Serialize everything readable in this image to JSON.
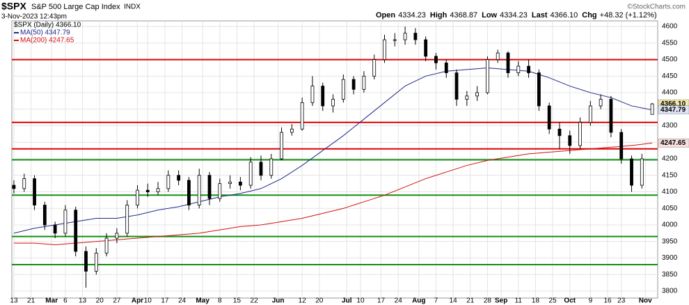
{
  "chart_data": {
    "type": "candlestick",
    "title": "$SPX",
    "subtitle": "S&P 500 Large Cap Index",
    "exchange": "INDX",
    "date": "3-Nov-2023 12:43pm",
    "quote": [
      {
        "label": "Open",
        "value": "4334.23"
      },
      {
        "label": "High",
        "value": "4368.87"
      },
      {
        "label": "Low",
        "value": "4334.23"
      },
      {
        "label": "Last",
        "value": "4366.10"
      },
      {
        "label": "Chg",
        "value": "+48.32 (+1.12%)"
      }
    ],
    "copyright": "©StockCharts.com",
    "price_name": "$SPX (Daily) 4366.10",
    "up_color": "#ffffff",
    "down_color": "#000000",
    "x": [
      0,
      3,
      6,
      9,
      12,
      15,
      18,
      21,
      24,
      27,
      30,
      33,
      36,
      39,
      42,
      45,
      48,
      51,
      54,
      57,
      60,
      63,
      66,
      69,
      72,
      75,
      78,
      81,
      84,
      87,
      90,
      93,
      96,
      99,
      102,
      105,
      108,
      111,
      114,
      117,
      120,
      123,
      126,
      129,
      132,
      135,
      138,
      141,
      144,
      147,
      150,
      153,
      156,
      159,
      162,
      165,
      168,
      171,
      174,
      177,
      180,
      183,
      186
    ],
    "open": [
      4120,
      4110,
      4140,
      4060,
      4000,
      3975,
      4045,
      3920,
      3860,
      3915,
      3960,
      3975,
      4060,
      4105,
      4100,
      4110,
      4150,
      4135,
      4060,
      4150,
      4080,
      4125,
      4130,
      4120,
      4190,
      4150,
      4200,
      4280,
      4290,
      4370,
      4420,
      4360,
      4380,
      4440,
      4410,
      4450,
      4500,
      4560,
      4560,
      4580,
      4560,
      4510,
      4490,
      4460,
      4380,
      4390,
      4400,
      4500,
      4520,
      4460,
      4480,
      4460,
      4360,
      4290,
      4270,
      4240,
      4310,
      4360,
      4380,
      4280,
      4200,
      4120,
      4334.23
    ],
    "high": [
      4135,
      4155,
      4150,
      4070,
      4010,
      4060,
      4055,
      3935,
      3930,
      3975,
      3990,
      4075,
      4120,
      4125,
      4130,
      4165,
      4165,
      4145,
      4170,
      4160,
      4140,
      4150,
      4145,
      4205,
      4210,
      4215,
      4295,
      4305,
      4385,
      4450,
      4430,
      4395,
      4455,
      4450,
      4465,
      4515,
      4575,
      4580,
      4600,
      4595,
      4570,
      4520,
      4500,
      4470,
      4405,
      4420,
      4510,
      4530,
      4525,
      4495,
      4500,
      4470,
      4370,
      4310,
      4285,
      4325,
      4375,
      4395,
      4390,
      4290,
      4210,
      4215,
      4368.87
    ],
    "low": [
      4095,
      4100,
      4045,
      3985,
      3960,
      3965,
      3905,
      3810,
      3850,
      3905,
      3945,
      3965,
      4050,
      4085,
      4090,
      4100,
      4120,
      4045,
      4050,
      4060,
      4070,
      4110,
      4105,
      4110,
      4135,
      4140,
      4195,
      4270,
      4285,
      4360,
      4345,
      4340,
      4370,
      4395,
      4400,
      4440,
      4490,
      4540,
      4545,
      4545,
      4495,
      4470,
      4445,
      4360,
      4360,
      4375,
      4395,
      4490,
      4445,
      4450,
      4445,
      4345,
      4275,
      4230,
      4215,
      4230,
      4300,
      4350,
      4265,
      4185,
      4100,
      4110,
      4334.23
    ],
    "close": [
      4110,
      4140,
      4060,
      4000,
      3975,
      4045,
      3920,
      3860,
      3915,
      3960,
      3975,
      4060,
      4105,
      4100,
      4110,
      4150,
      4135,
      4060,
      4150,
      4080,
      4125,
      4130,
      4120,
      4190,
      4150,
      4200,
      4280,
      4290,
      4370,
      4420,
      4360,
      4380,
      4440,
      4410,
      4450,
      4500,
      4560,
      4560,
      4580,
      4560,
      4510,
      4490,
      4460,
      4380,
      4390,
      4400,
      4500,
      4520,
      4460,
      4480,
      4460,
      4360,
      4290,
      4270,
      4240,
      4310,
      4360,
      4380,
      4280,
      4200,
      4120,
      4200,
      4366.1
    ],
    "series": [
      {
        "name": "MA(50) 4347.79",
        "color": "#1f2a8a",
        "x": [
          0,
          6,
          12,
          18,
          24,
          30,
          36,
          42,
          48,
          54,
          60,
          66,
          72,
          78,
          84,
          90,
          96,
          102,
          108,
          114,
          120,
          126,
          132,
          138,
          144,
          150,
          156,
          162,
          168,
          174,
          180,
          186
        ],
        "values": [
          3975,
          3990,
          4000,
          4010,
          4020,
          4020,
          4030,
          4045,
          4055,
          4070,
          4085,
          4095,
          4110,
          4140,
          4180,
          4225,
          4270,
          4320,
          4370,
          4420,
          4450,
          4465,
          4470,
          4475,
          4470,
          4465,
          4445,
          4420,
          4400,
          4385,
          4360,
          4347.79
        ]
      },
      {
        "name": "MA(200) 4247.65",
        "color": "#d01010",
        "x": [
          0,
          6,
          12,
          18,
          24,
          30,
          36,
          42,
          48,
          54,
          60,
          66,
          72,
          78,
          84,
          90,
          96,
          102,
          108,
          114,
          120,
          126,
          132,
          138,
          144,
          150,
          156,
          162,
          168,
          174,
          180,
          186
        ],
        "values": [
          3945,
          3945,
          3940,
          3945,
          3950,
          3955,
          3960,
          3965,
          3970,
          3975,
          3985,
          3995,
          4000,
          4010,
          4020,
          4035,
          4050,
          4070,
          4090,
          4115,
          4140,
          4160,
          4180,
          4195,
          4205,
          4215,
          4220,
          4225,
          4230,
          4235,
          4240,
          4247.65
        ]
      }
    ],
    "levels": [
      {
        "value": 4500,
        "color": "#e00000"
      },
      {
        "value": 4310,
        "color": "#e00000"
      },
      {
        "value": 4230,
        "color": "#e00000"
      },
      {
        "value": 4197,
        "color": "#109010"
      },
      {
        "value": 4090,
        "color": "#109010"
      },
      {
        "value": 3965,
        "color": "#109010"
      },
      {
        "value": 3880,
        "color": "#109010"
      }
    ],
    "price_tags": [
      {
        "value": 4366.1,
        "label": "4366.10",
        "color": "#f3e9a8"
      },
      {
        "value": 4347.79,
        "label": "4347.79",
        "color": "#dfe3f5"
      },
      {
        "value": 4247.65,
        "label": "4247.65",
        "color": "#f8dede"
      }
    ],
    "xlim": [
      -0.6,
      187.6
    ],
    "ylim": [
      3779,
      4617
    ],
    "yticks": [
      3800,
      3850,
      3900,
      3950,
      4000,
      4050,
      4100,
      4150,
      4200,
      4250,
      4300,
      4350,
      4400,
      4450,
      4500,
      4550,
      4600
    ],
    "xticks": [
      {
        "value": 0,
        "label": "13"
      },
      {
        "value": 5,
        "label": "21"
      },
      {
        "value": 11,
        "label": "Mar"
      },
      {
        "value": 15,
        "label": "6"
      },
      {
        "value": 20,
        "label": "13"
      },
      {
        "value": 25,
        "label": "20"
      },
      {
        "value": 30,
        "label": "27"
      },
      {
        "value": 36,
        "label": "Apr"
      },
      {
        "value": 39,
        "label": "10"
      },
      {
        "value": 44,
        "label": "17"
      },
      {
        "value": 49,
        "label": "24"
      },
      {
        "value": 55,
        "label": "May"
      },
      {
        "value": 60,
        "label": "8"
      },
      {
        "value": 65,
        "label": "15"
      },
      {
        "value": 70,
        "label": "22"
      },
      {
        "value": 77,
        "label": "Jun"
      },
      {
        "value": 84,
        "label": "12"
      },
      {
        "value": 89,
        "label": "20"
      },
      {
        "value": 97,
        "label": "Jul"
      },
      {
        "value": 101,
        "label": "10"
      },
      {
        "value": 107,
        "label": "17"
      },
      {
        "value": 112,
        "label": "24"
      },
      {
        "value": 118,
        "label": "Aug"
      },
      {
        "value": 123,
        "label": "7"
      },
      {
        "value": 128,
        "label": "14"
      },
      {
        "value": 133,
        "label": "21"
      },
      {
        "value": 138,
        "label": "28"
      },
      {
        "value": 142,
        "label": "Sep"
      },
      {
        "value": 147,
        "label": "11"
      },
      {
        "value": 152,
        "label": "18"
      },
      {
        "value": 157,
        "label": "25"
      },
      {
        "value": 162,
        "label": "Oct"
      },
      {
        "value": 168,
        "label": "9"
      },
      {
        "value": 173,
        "label": "16"
      },
      {
        "value": 177,
        "label": "23"
      },
      {
        "value": 184,
        "label": "Nov"
      }
    ],
    "grid": true
  }
}
